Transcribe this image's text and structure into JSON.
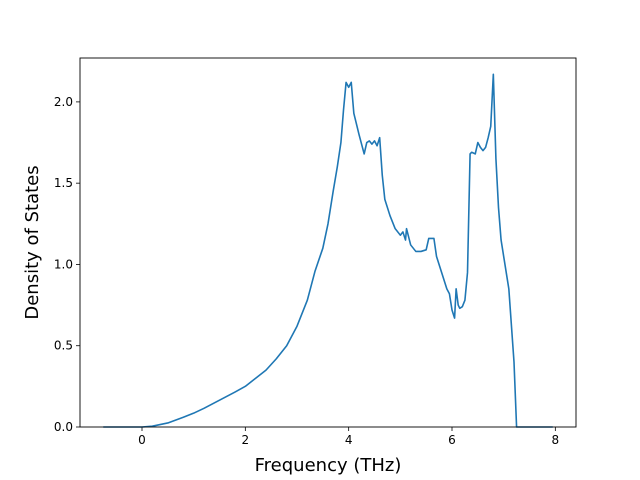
{
  "chart_data": {
    "type": "line",
    "xlabel": "Frequency (THz)",
    "ylabel": "Density of States",
    "xlim": [
      -1.2,
      8.4
    ],
    "ylim": [
      0.0,
      2.27
    ],
    "xticks": [
      0,
      2,
      4,
      6,
      8
    ],
    "xtick_labels": [
      "0",
      "2",
      "4",
      "6",
      "8"
    ],
    "yticks": [
      0.0,
      0.5,
      1.0,
      1.5,
      2.0
    ],
    "ytick_labels": [
      "0.0",
      "0.5",
      "1.0",
      "1.5",
      "2.0"
    ],
    "grid": false,
    "line_color": "#1f77b4",
    "series": [
      {
        "x": [
          -0.75,
          0.0,
          0.2,
          0.5,
          0.8,
          1.0,
          1.2,
          1.5,
          1.8,
          2.0,
          2.2,
          2.4,
          2.6,
          2.8,
          3.0,
          3.2,
          3.35,
          3.5,
          3.6,
          3.7,
          3.78,
          3.85,
          3.9,
          3.95,
          4.0,
          4.05,
          4.1,
          4.2,
          4.3,
          4.35,
          4.4,
          4.45,
          4.5,
          4.55,
          4.6,
          4.65,
          4.7,
          4.8,
          4.9,
          5.0,
          5.05,
          5.1,
          5.12,
          5.2,
          5.3,
          5.4,
          5.5,
          5.55,
          5.6,
          5.65,
          5.7,
          5.8,
          5.9,
          5.95,
          6.0,
          6.05,
          6.08,
          6.12,
          6.15,
          6.2,
          6.25,
          6.3,
          6.35,
          6.38,
          6.45,
          6.5,
          6.55,
          6.6,
          6.65,
          6.7,
          6.75,
          6.8,
          6.85,
          6.9,
          6.95,
          7.0,
          7.1,
          7.2,
          7.25,
          7.3,
          7.95
        ],
        "y": [
          0.0,
          0.0,
          0.005,
          0.025,
          0.06,
          0.085,
          0.115,
          0.165,
          0.215,
          0.25,
          0.3,
          0.35,
          0.42,
          0.5,
          0.62,
          0.78,
          0.96,
          1.1,
          1.25,
          1.45,
          1.6,
          1.75,
          1.95,
          2.12,
          2.09,
          2.12,
          1.93,
          1.8,
          1.68,
          1.75,
          1.76,
          1.74,
          1.76,
          1.73,
          1.78,
          1.55,
          1.4,
          1.3,
          1.22,
          1.18,
          1.2,
          1.15,
          1.22,
          1.12,
          1.08,
          1.08,
          1.09,
          1.16,
          1.16,
          1.16,
          1.05,
          0.95,
          0.85,
          0.82,
          0.72,
          0.67,
          0.85,
          0.75,
          0.73,
          0.74,
          0.78,
          0.95,
          1.68,
          1.69,
          1.68,
          1.75,
          1.72,
          1.7,
          1.72,
          1.78,
          1.85,
          2.17,
          1.65,
          1.35,
          1.15,
          1.05,
          0.85,
          0.4,
          0.0,
          0.0,
          0.0
        ]
      }
    ]
  }
}
